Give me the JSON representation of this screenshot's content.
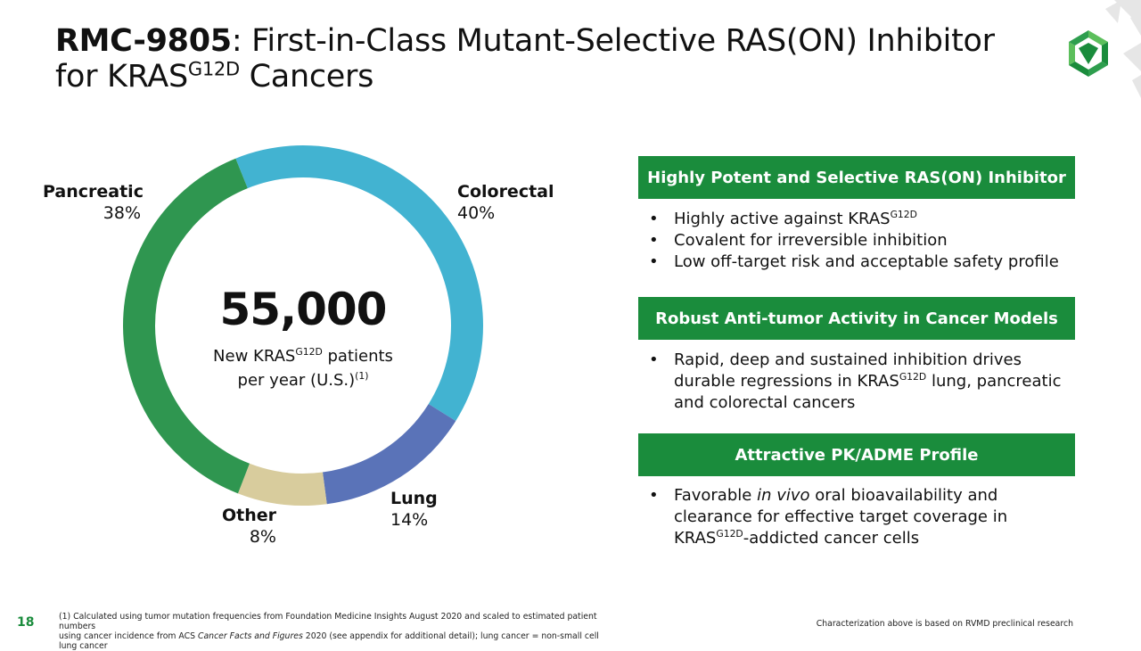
{
  "title": {
    "bold": "RMC-9805",
    "rest_line1": ": First-in-Class Mutant-Selective RAS(ON) Inhibitor",
    "line2_pre": "for KRAS",
    "line2_sup": "G12D",
    "line2_post": " Cancers"
  },
  "colors": {
    "accent_green": "#1a8c3c",
    "pancreatic": "#2f9650",
    "colorectal": "#42b3d1",
    "lung": "#5a73b8",
    "other": "#d8cc9d"
  },
  "chart_data": {
    "type": "pie",
    "style": "donut",
    "center_value": "55,000",
    "center_label_pre": "New KRAS",
    "center_label_sup": "G12D",
    "center_label_post": " patients",
    "center_label_line2": "per year (U.S.)",
    "center_label_footref": "(1)",
    "slices": [
      {
        "name": "Colorectal",
        "value": 40,
        "label": "40%",
        "color": "#42b3d1"
      },
      {
        "name": "Lung",
        "value": 14,
        "label": "14%",
        "color": "#5a73b8"
      },
      {
        "name": "Other",
        "value": 8,
        "label": "8%",
        "color": "#d8cc9d"
      },
      {
        "name": "Pancreatic",
        "value": 38,
        "label": "38%",
        "color": "#2f9650"
      }
    ]
  },
  "panels": [
    {
      "header": "Highly Potent and Selective RAS(ON) Inhibitor",
      "bullets": [
        {
          "pre": "Highly active against KRAS",
          "sup": "G12D",
          "post": ""
        },
        {
          "pre": "Covalent for irreversible inhibition",
          "sup": "",
          "post": ""
        },
        {
          "pre": "Low off-target risk and acceptable safety profile",
          "sup": "",
          "post": ""
        }
      ]
    },
    {
      "header": "Robust Anti-tumor Activity in Cancer Models",
      "bullets": [
        {
          "pre": "Rapid, deep and sustained inhibition drives durable regressions in KRAS",
          "sup": "G12D",
          "post": " lung, pancreatic and colorectal cancers"
        }
      ]
    },
    {
      "header": "Attractive PK/ADME Profile",
      "bullets": [
        {
          "pre": "Favorable ",
          "em": "in vivo",
          "mid": " oral bioavailability and clearance for effective target coverage in KRAS",
          "sup": "G12D",
          "post": "-addicted cancer cells"
        }
      ]
    }
  ],
  "footer": {
    "page_number": "18",
    "footnote_line1": "(1) Calculated using tumor mutation frequencies from Foundation Medicine Insights August 2020 and scaled to estimated patient numbers",
    "footnote_line2_pre": "using cancer incidence from ACS ",
    "footnote_line2_em": "Cancer Facts and Figures",
    "footnote_line2_post": " 2020 (see appendix for additional detail); lung cancer = non-small cell lung cancer",
    "right_note": "Characterization above is based on RVMD preclinical research"
  }
}
